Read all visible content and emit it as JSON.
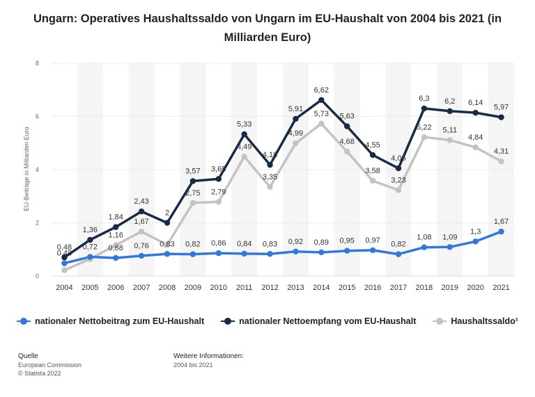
{
  "title": "Ungarn: Operatives Haushaltssaldo von Ungarn im EU-Haushalt von 2004 bis 2021 (in Milliarden Euro)",
  "chart_data": {
    "type": "line",
    "title": "Ungarn: Operatives Haushaltssaldo von Ungarn im EU-Haushalt von 2004 bis 2021 (in Milliarden Euro)",
    "xlabel": "",
    "ylabel": "EU-Beiträge in Milliarden Euro",
    "ylim": [
      0,
      8
    ],
    "yticks": [
      "0",
      "2",
      "4",
      "6",
      "8"
    ],
    "yticks_values": [
      0,
      2,
      4,
      6,
      8
    ],
    "categories": [
      "2004",
      "2005",
      "2006",
      "2007",
      "2008",
      "2009",
      "2010",
      "2011",
      "2012",
      "2013",
      "2014",
      "2015",
      "2016",
      "2017",
      "2018",
      "2019",
      "2020",
      "2021"
    ],
    "series": [
      {
        "name": "nationaler Nettobeitrag zum EU-Haushalt",
        "color": "#3277de",
        "values": [
          0.48,
          0.72,
          0.68,
          0.76,
          0.83,
          0.82,
          0.86,
          0.84,
          0.83,
          0.92,
          0.89,
          0.95,
          0.97,
          0.82,
          1.08,
          1.09,
          1.3,
          1.67
        ],
        "labels": [
          "0,48",
          "0,72",
          "0,68",
          "0,76",
          "0,83",
          "0,82",
          "0,86",
          "0,84",
          "0,83",
          "0,92",
          "0,89",
          "0,95",
          "0,97",
          "0,82",
          "1,08",
          "1,09",
          "1,3",
          "1,67"
        ]
      },
      {
        "name": "nationaler Nettoempfang vom EU-Haushalt",
        "color": "#172b45",
        "values": [
          0.7,
          1.36,
          1.84,
          2.43,
          2.0,
          3.57,
          3.65,
          5.33,
          4.18,
          5.91,
          6.62,
          5.63,
          4.55,
          4.05,
          6.3,
          6.2,
          6.14,
          5.97
        ],
        "labels": [
          "",
          "1,36",
          "1,84",
          "2,43",
          "2",
          "3,57",
          "3,65",
          "5,33",
          "4,18",
          "5,91",
          "6,62",
          "5,63",
          "4,55",
          "4,05",
          "6,3",
          "6,2",
          "6,14",
          "5,97"
        ]
      },
      {
        "name": "Haushaltssaldo¹",
        "color": "#c3c3c3",
        "values": [
          0.22,
          0.64,
          1.16,
          1.67,
          1.17,
          2.75,
          2.79,
          4.49,
          3.35,
          4.99,
          5.73,
          4.68,
          3.58,
          3.23,
          5.22,
          5.11,
          4.84,
          4.31
        ],
        "labels": [
          "",
          "",
          "1,16",
          "1,67",
          "",
          "2,75",
          "2,79",
          "4,49",
          "3,35",
          "4,99",
          "5,73",
          "4,68",
          "3,58",
          "3,23",
          "5,22",
          "5,11",
          "4,84",
          "4,31"
        ]
      }
    ],
    "grid": true,
    "legend": "bottom"
  },
  "footer": {
    "source_heading": "Quelle",
    "source_line1": "European Commission",
    "source_line2": "© Statista 2022",
    "info_heading": "Weitere Informationen:",
    "info_line1": "2004 bis 2021"
  }
}
